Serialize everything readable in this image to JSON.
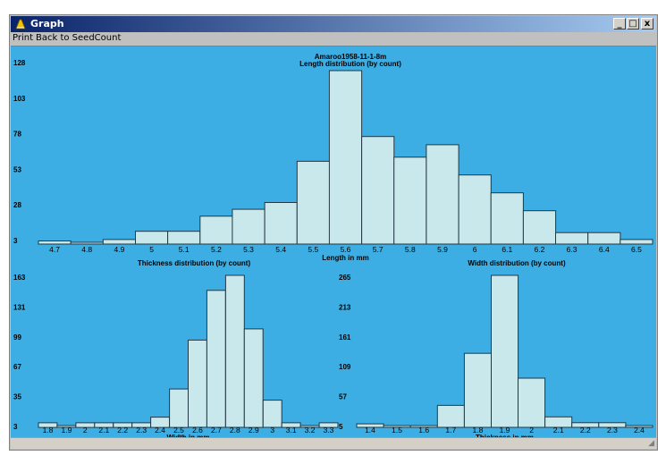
{
  "window": {
    "title": "Graph",
    "minimize": "_",
    "maximize": "□",
    "close": "x"
  },
  "menu": {
    "print": "Print",
    "back": "Back to SeedCount"
  },
  "colors": {
    "plot_bg": "#3daee3",
    "bar_fill": "#c9e8ec",
    "bar_stroke": "#243744"
  },
  "chart_data": [
    {
      "type": "bar",
      "title": "Amaroo1958-11-1-8m",
      "subtitle": "Length distribution (by count)",
      "xlabel": "Length in mm",
      "ylabel": "",
      "categories": [
        "4.7",
        "4.8",
        "4.9",
        "5",
        "5.1",
        "5.2",
        "5.3",
        "5.4",
        "5.5",
        "5.6",
        "5.7",
        "5.8",
        "5.9",
        "6",
        "6.1",
        "6.2",
        "6.3",
        "6.4",
        "6.5"
      ],
      "values": [
        4,
        3,
        5,
        11,
        11,
        22,
        27,
        32,
        62,
        128,
        80,
        65,
        74,
        52,
        39,
        26,
        10,
        10,
        5
      ],
      "yticks": [
        "128",
        "103",
        "78",
        "53",
        "28",
        "3"
      ],
      "ylim": [
        3,
        128
      ]
    },
    {
      "type": "bar",
      "title": "Thickness distribution (by count)",
      "xlabel": "Width in mm",
      "ylabel": "",
      "categories": [
        "1.8",
        "1.9",
        "2",
        "2.1",
        "2.2",
        "2.3",
        "2.4",
        "2.5",
        "2.6",
        "2.7",
        "2.8",
        "2.9",
        "3",
        "3.1",
        "3.2",
        "3.3"
      ],
      "values": [
        6,
        3,
        6,
        6,
        6,
        6,
        12,
        42,
        94,
        147,
        163,
        106,
        30,
        6,
        3,
        6
      ],
      "yticks": [
        "163",
        "131",
        "99",
        "67",
        "35",
        "3"
      ],
      "ylim": [
        3,
        163
      ]
    },
    {
      "type": "bar",
      "title": "Width distribution (by count)",
      "xlabel": "Thickness in mm",
      "ylabel": "",
      "categories": [
        "1.4",
        "1.5",
        "1.6",
        "1.7",
        "1.8",
        "1.9",
        "2",
        "2.1",
        "2.2",
        "2.3",
        "2.4"
      ],
      "values": [
        8,
        5,
        5,
        40,
        130,
        265,
        87,
        20,
        10,
        10,
        5
      ],
      "yticks": [
        "265",
        "213",
        "161",
        "109",
        "57",
        "5"
      ],
      "ylim": [
        5,
        265
      ]
    }
  ]
}
